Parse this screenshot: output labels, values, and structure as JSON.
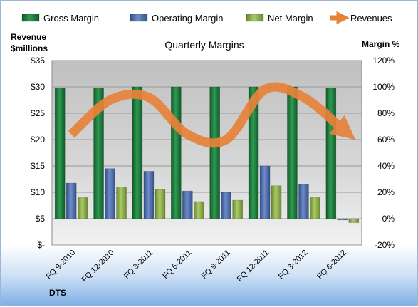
{
  "chart_data": {
    "type": "bar",
    "title": "Quarterly Margins",
    "source": "DTS",
    "categories": [
      "FQ 9-2010",
      "FQ 12-2010",
      "FQ 3-2011",
      "FQ 6-2011",
      "FQ 9-2011",
      "FQ 12-2011",
      "FQ 3-2012",
      "FQ 6-2012"
    ],
    "series": [
      {
        "name": "Gross Margin",
        "axis": "right",
        "color": "#1f7a3c",
        "values": [
          99,
          99,
          100,
          100,
          100,
          100,
          100,
          99
        ]
      },
      {
        "name": "Operating Margin",
        "axis": "right",
        "color": "#4f6fb0",
        "values": [
          27,
          38,
          36,
          21,
          20,
          40,
          26,
          -1
        ]
      },
      {
        "name": "Net Margin",
        "axis": "right",
        "color": "#8caf46",
        "values": [
          16,
          24,
          22,
          13,
          14,
          25,
          16,
          -3
        ]
      },
      {
        "name": "Revenues",
        "axis": "left",
        "type": "line",
        "color": "#e8823a",
        "values": [
          21,
          27.5,
          28,
          21,
          20,
          29.5,
          28,
          22
        ]
      }
    ],
    "left_axis": {
      "label_line1": "Revenue",
      "label_line2": "$millions",
      "ylim": [
        0,
        35
      ],
      "ticks": [
        0,
        5,
        10,
        15,
        20,
        25,
        30,
        35
      ],
      "tick_labels": [
        "$-",
        "$5",
        "$10",
        "$15",
        "$20",
        "$25",
        "$30",
        "$35"
      ]
    },
    "right_axis": {
      "label": "Margin %",
      "ylim": [
        -20,
        120
      ],
      "ticks": [
        -20,
        0,
        20,
        40,
        60,
        80,
        100,
        120
      ],
      "tick_labels": [
        "-20%",
        "0%",
        "20%",
        "40%",
        "60%",
        "80%",
        "100%",
        "120%"
      ]
    },
    "legend_position": "top",
    "grid": true
  }
}
